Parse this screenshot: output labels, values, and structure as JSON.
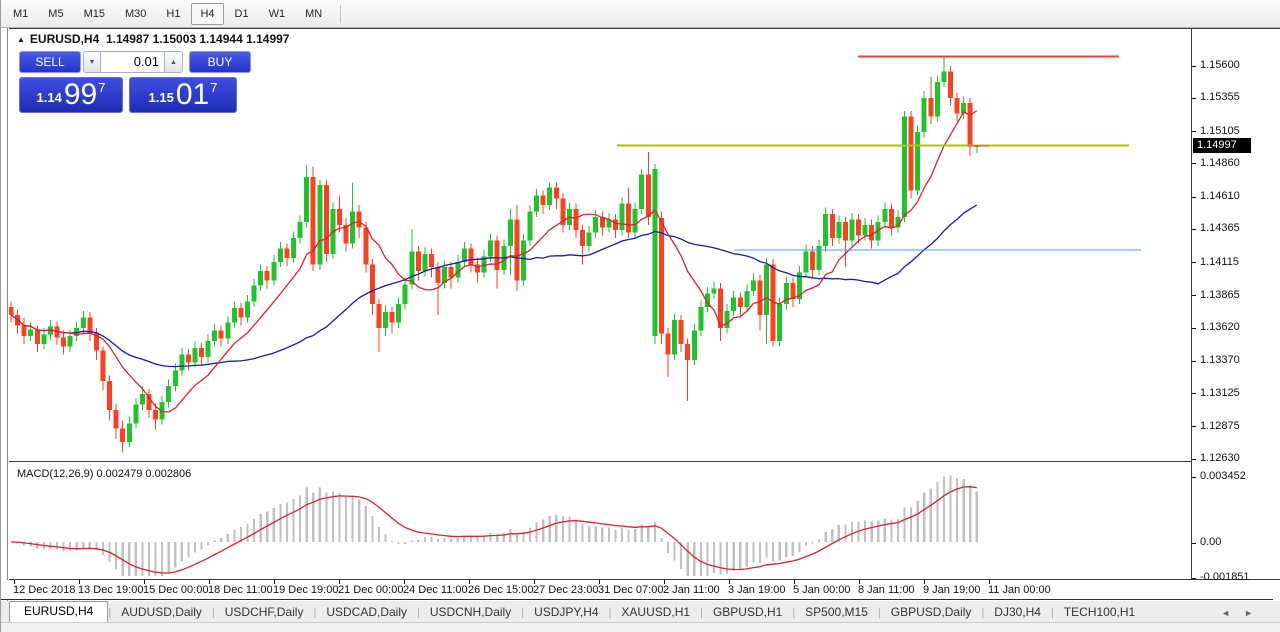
{
  "toolbar": {
    "timeframes": [
      "M1",
      "M5",
      "M15",
      "M30",
      "H1",
      "H4",
      "D1",
      "W1",
      "MN"
    ],
    "active": "H4"
  },
  "chart_header": {
    "collapse_icon": "▲",
    "symbol": "EURUSD,H4",
    "ohlc": "1.14987 1.15003 1.14944 1.14997"
  },
  "trade_panel": {
    "sell_label": "SELL",
    "buy_label": "BUY",
    "volume": "0.01",
    "spin_up_icon": "▲",
    "spin_down_icon": "▼",
    "sell_price": {
      "prefix": "1.14",
      "big": "99",
      "sup": "7"
    },
    "buy_price": {
      "prefix": "1.15",
      "big": "01",
      "sup": "7"
    }
  },
  "price_axis": {
    "current": "1.14997"
  },
  "macd_panel": {
    "label": "MACD(12,26,9) 0.002479 0.002806",
    "axis_max": "0.003452",
    "axis_zero": "0.00",
    "axis_min": "-0.001851"
  },
  "tabs": {
    "items": [
      "EURUSD,H4",
      "AUDUSD,Daily",
      "USDCHF,Daily",
      "USDCAD,Daily",
      "USDCNH,Daily",
      "USDJPY,H4",
      "XAUUSD,H1",
      "GBPUSD,H1",
      "SP500,M15",
      "GBPUSD,Daily",
      "DJ30,H4",
      "TECH100,H1"
    ],
    "active_index": 0,
    "scroll_left_icon": "◄",
    "scroll_right_icon": "►"
  },
  "colors": {
    "bull": "#1fc32c",
    "bear": "#ff3f22",
    "ma_fast": "#d9232e",
    "ma_slow": "#1b1ba8",
    "hline_red": "#fb3a3a",
    "hline_olive": "#aec400",
    "hline_blue": "#4a9ede",
    "macd_hist": "#c0c0c0",
    "macd_signal": "#d9232e"
  },
  "chart_data": {
    "type": "candlestick",
    "title": "EURUSD,H4",
    "ohlc_last": {
      "open": 1.14987,
      "high": 1.15003,
      "low": 1.14944,
      "close": 1.14997
    },
    "y_range": [
      1.1263,
      1.156
    ],
    "y_ticks": [
      1.156,
      1.15355,
      1.15105,
      1.1486,
      1.1461,
      1.14365,
      1.14115,
      1.13865,
      1.1362,
      1.1337,
      1.13125,
      1.12875,
      1.1263
    ],
    "x_tick_labels": [
      "12 Dec 2018",
      "13 Dec 19:00",
      "15 Dec 00:00",
      "18 Dec 11:00",
      "19 Dec 19:00",
      "21 Dec 00:00",
      "24 Dec 11:00",
      "26 Dec 15:00",
      "27 Dec 23:00",
      "31 Dec 07:00",
      "2 Jan 11:00",
      "3 Jan 19:00",
      "5 Jan 00:00",
      "8 Jan 11:00",
      "9 Jan 19:00",
      "11 Jan 00:00"
    ],
    "overlays": [
      {
        "name": "ma_fast",
        "period": 10
      },
      {
        "name": "ma_slow",
        "period": 34
      }
    ],
    "hlines": [
      {
        "price": 1.1567,
        "x_from": 857,
        "x_to": 1118,
        "color_key": "hline_red",
        "width": 2
      },
      {
        "price": 1.15,
        "x_from": 616,
        "x_to": 1128,
        "color_key": "hline_olive",
        "width": 2
      },
      {
        "price": 1.1421,
        "x_from": 733,
        "x_to": 1140,
        "color_key": "hline_blue",
        "width": 1
      },
      {
        "price": 1.14997,
        "x_from": 966,
        "x_to": 988,
        "color_key": "hline_red",
        "width": 1
      }
    ],
    "indicator": {
      "type": "macd",
      "params": [
        12,
        26,
        9
      ],
      "display_values": [
        0.002479,
        0.002806
      ],
      "y_max": 0.003452,
      "y_min": -0.001851
    },
    "candles": [
      [
        1.1378,
        1.1382,
        1.1366,
        1.1372
      ],
      [
        1.1372,
        1.1376,
        1.1358,
        1.1364
      ],
      [
        1.1364,
        1.137,
        1.135,
        1.1356
      ],
      [
        1.1356,
        1.1366,
        1.1352,
        1.1361
      ],
      [
        1.1361,
        1.1364,
        1.1344,
        1.135
      ],
      [
        1.135,
        1.1362,
        1.1346,
        1.1357
      ],
      [
        1.1357,
        1.1368,
        1.1353,
        1.1363
      ],
      [
        1.1363,
        1.1367,
        1.1349,
        1.1355
      ],
      [
        1.1355,
        1.136,
        1.1342,
        1.1348
      ],
      [
        1.1348,
        1.1361,
        1.1344,
        1.1356
      ],
      [
        1.1356,
        1.1367,
        1.1352,
        1.1362
      ],
      [
        1.1362,
        1.1375,
        1.1358,
        1.137
      ],
      [
        1.137,
        1.1374,
        1.1352,
        1.1358
      ],
      [
        1.1358,
        1.1362,
        1.1338,
        1.1345
      ],
      [
        1.1345,
        1.1348,
        1.1315,
        1.1322
      ],
      [
        1.1322,
        1.1326,
        1.1292,
        1.13
      ],
      [
        1.13,
        1.1305,
        1.1278,
        1.1286
      ],
      [
        1.1286,
        1.1292,
        1.1268,
        1.1276
      ],
      [
        1.1276,
        1.1295,
        1.1272,
        1.129
      ],
      [
        1.129,
        1.1309,
        1.1286,
        1.1304
      ],
      [
        1.1304,
        1.1318,
        1.13,
        1.1312
      ],
      [
        1.1312,
        1.1316,
        1.1294,
        1.13
      ],
      [
        1.13,
        1.1305,
        1.1285,
        1.1293
      ],
      [
        1.1293,
        1.1311,
        1.1289,
        1.1306
      ],
      [
        1.1306,
        1.1323,
        1.1302,
        1.1318
      ],
      [
        1.1318,
        1.1335,
        1.1314,
        1.133
      ],
      [
        1.133,
        1.1347,
        1.1326,
        1.1342
      ],
      [
        1.1342,
        1.1346,
        1.133,
        1.1336
      ],
      [
        1.1336,
        1.1352,
        1.1332,
        1.1347
      ],
      [
        1.1347,
        1.1351,
        1.1334,
        1.134
      ],
      [
        1.134,
        1.1357,
        1.1336,
        1.1352
      ],
      [
        1.1352,
        1.1365,
        1.1348,
        1.136
      ],
      [
        1.136,
        1.1364,
        1.1348,
        1.1354
      ],
      [
        1.1354,
        1.1371,
        1.135,
        1.1366
      ],
      [
        1.1366,
        1.1382,
        1.1362,
        1.1377
      ],
      [
        1.1377,
        1.1381,
        1.1364,
        1.137
      ],
      [
        1.137,
        1.1387,
        1.1366,
        1.1382
      ],
      [
        1.1382,
        1.1399,
        1.1378,
        1.1394
      ],
      [
        1.1394,
        1.141,
        1.139,
        1.1405
      ],
      [
        1.1405,
        1.1409,
        1.1392,
        1.1398
      ],
      [
        1.1398,
        1.1417,
        1.1394,
        1.1412
      ],
      [
        1.1412,
        1.1427,
        1.1408,
        1.1422
      ],
      [
        1.1422,
        1.1426,
        1.1409,
        1.1415
      ],
      [
        1.1415,
        1.1435,
        1.1411,
        1.143
      ],
      [
        1.143,
        1.1447,
        1.1426,
        1.1442
      ],
      [
        1.1442,
        1.1485,
        1.1438,
        1.1476
      ],
      [
        1.1476,
        1.1484,
        1.1405,
        1.141
      ],
      [
        1.141,
        1.1474,
        1.1406,
        1.147
      ],
      [
        1.147,
        1.1474,
        1.1412,
        1.1418
      ],
      [
        1.1418,
        1.1457,
        1.1414,
        1.1452
      ],
      [
        1.1452,
        1.1462,
        1.1434,
        1.144
      ],
      [
        1.144,
        1.1445,
        1.142,
        1.1426
      ],
      [
        1.1426,
        1.1472,
        1.1422,
        1.145
      ],
      [
        1.145,
        1.1455,
        1.143,
        1.1438
      ],
      [
        1.1438,
        1.1442,
        1.1404,
        1.141
      ],
      [
        1.141,
        1.1414,
        1.1372,
        1.138
      ],
      [
        1.138,
        1.1384,
        1.1344,
        1.1362
      ],
      [
        1.1362,
        1.1379,
        1.1356,
        1.1374
      ],
      [
        1.1374,
        1.1378,
        1.1358,
        1.1366
      ],
      [
        1.1366,
        1.1385,
        1.1362,
        1.138
      ],
      [
        1.138,
        1.14,
        1.1376,
        1.1395
      ],
      [
        1.1395,
        1.1437,
        1.1391,
        1.142
      ],
      [
        1.142,
        1.1424,
        1.1398,
        1.1405
      ],
      [
        1.1405,
        1.1423,
        1.1401,
        1.1418
      ],
      [
        1.1418,
        1.1422,
        1.14,
        1.1408
      ],
      [
        1.1408,
        1.1412,
        1.1372,
        1.1396
      ],
      [
        1.1396,
        1.1413,
        1.1392,
        1.1408
      ],
      [
        1.1408,
        1.1412,
        1.1392,
        1.14
      ],
      [
        1.14,
        1.1417,
        1.1396,
        1.1412
      ],
      [
        1.1412,
        1.1427,
        1.1408,
        1.1422
      ],
      [
        1.1422,
        1.1426,
        1.1404,
        1.141
      ],
      [
        1.141,
        1.1415,
        1.1396,
        1.1404
      ],
      [
        1.1404,
        1.1421,
        1.14,
        1.1416
      ],
      [
        1.1416,
        1.1433,
        1.1412,
        1.1428
      ],
      [
        1.1428,
        1.1432,
        1.1392,
        1.1406
      ],
      [
        1.1406,
        1.1429,
        1.1402,
        1.1424
      ],
      [
        1.1424,
        1.1452,
        1.1402,
        1.1444
      ],
      [
        1.1444,
        1.1455,
        1.139,
        1.1398
      ],
      [
        1.1398,
        1.1433,
        1.1394,
        1.1428
      ],
      [
        1.1428,
        1.1455,
        1.1424,
        1.145
      ],
      [
        1.145,
        1.1467,
        1.1446,
        1.1462
      ],
      [
        1.1462,
        1.1466,
        1.1448,
        1.1455
      ],
      [
        1.1455,
        1.1472,
        1.1451,
        1.1468
      ],
      [
        1.1468,
        1.1472,
        1.1452,
        1.146
      ],
      [
        1.146,
        1.1464,
        1.1434,
        1.144
      ],
      [
        1.144,
        1.1457,
        1.1436,
        1.1452
      ],
      [
        1.1452,
        1.1456,
        1.143,
        1.1436
      ],
      [
        1.1436,
        1.144,
        1.141,
        1.1424
      ],
      [
        1.1424,
        1.1439,
        1.142,
        1.1434
      ],
      [
        1.1434,
        1.1451,
        1.143,
        1.1446
      ],
      [
        1.1446,
        1.145,
        1.1432,
        1.1438
      ],
      [
        1.1438,
        1.1449,
        1.1434,
        1.1444
      ],
      [
        1.1444,
        1.1448,
        1.143,
        1.1436
      ],
      [
        1.1436,
        1.1461,
        1.1432,
        1.1456
      ],
      [
        1.1456,
        1.1468,
        1.143,
        1.1434
      ],
      [
        1.1434,
        1.1457,
        1.143,
        1.1452
      ],
      [
        1.1452,
        1.1482,
        1.1448,
        1.1478
      ],
      [
        1.1478,
        1.1495,
        1.144,
        1.1446
      ],
      [
        1.1356,
        1.1486,
        1.135,
        1.1482
      ],
      [
        1.1445,
        1.145,
        1.135,
        1.1358
      ],
      [
        1.1358,
        1.1362,
        1.1325,
        1.1342
      ],
      [
        1.1342,
        1.1373,
        1.1338,
        1.1368
      ],
      [
        1.1368,
        1.1372,
        1.1344,
        1.135
      ],
      [
        1.135,
        1.1354,
        1.1307,
        1.1338
      ],
      [
        1.1338,
        1.1365,
        1.1334,
        1.136
      ],
      [
        1.136,
        1.1383,
        1.1356,
        1.1378
      ],
      [
        1.1378,
        1.1393,
        1.1374,
        1.1388
      ],
      [
        1.1388,
        1.1397,
        1.1384,
        1.1392
      ],
      [
        1.1392,
        1.1396,
        1.1352,
        1.1362
      ],
      [
        1.1362,
        1.138,
        1.1358,
        1.1375
      ],
      [
        1.1375,
        1.139,
        1.1371,
        1.1385
      ],
      [
        1.1385,
        1.1389,
        1.137,
        1.1378
      ],
      [
        1.1378,
        1.1395,
        1.1374,
        1.139
      ],
      [
        1.139,
        1.1403,
        1.1386,
        1.1398
      ],
      [
        1.1398,
        1.1402,
        1.136,
        1.1372
      ],
      [
        1.1372,
        1.1415,
        1.135,
        1.141
      ],
      [
        1.141,
        1.1414,
        1.1348,
        1.1352
      ],
      [
        1.1352,
        1.1385,
        1.1348,
        1.138
      ],
      [
        1.138,
        1.1401,
        1.1376,
        1.1396
      ],
      [
        1.1396,
        1.14,
        1.1378,
        1.1384
      ],
      [
        1.1384,
        1.1409,
        1.138,
        1.1404
      ],
      [
        1.1404,
        1.1425,
        1.14,
        1.142
      ],
      [
        1.142,
        1.1424,
        1.14,
        1.1406
      ],
      [
        1.1406,
        1.1429,
        1.1402,
        1.1424
      ],
      [
        1.1424,
        1.1453,
        1.142,
        1.1448
      ],
      [
        1.1448,
        1.1452,
        1.1424,
        1.143
      ],
      [
        1.143,
        1.1447,
        1.1426,
        1.1442
      ],
      [
        1.1442,
        1.1446,
        1.1408,
        1.1428
      ],
      [
        1.1428,
        1.1449,
        1.1424,
        1.1444
      ],
      [
        1.1444,
        1.1448,
        1.1426,
        1.1432
      ],
      [
        1.1432,
        1.1445,
        1.1428,
        1.144
      ],
      [
        1.144,
        1.1444,
        1.1422,
        1.1428
      ],
      [
        1.1428,
        1.1447,
        1.1424,
        1.1442
      ],
      [
        1.1442,
        1.1457,
        1.1438,
        1.1452
      ],
      [
        1.1452,
        1.1456,
        1.1432,
        1.1438
      ],
      [
        1.1438,
        1.1451,
        1.1434,
        1.1446
      ],
      [
        1.1446,
        1.1526,
        1.1442,
        1.1522
      ],
      [
        1.1522,
        1.1526,
        1.146,
        1.1466
      ],
      [
        1.1466,
        1.1515,
        1.1462,
        1.151
      ],
      [
        1.151,
        1.1541,
        1.1506,
        1.1536
      ],
      [
        1.1536,
        1.1552,
        1.1516,
        1.1522
      ],
      [
        1.1522,
        1.1553,
        1.1518,
        1.1548
      ],
      [
        1.1548,
        1.1568,
        1.1544,
        1.1556
      ],
      [
        1.1556,
        1.156,
        1.153,
        1.1536
      ],
      [
        1.1536,
        1.154,
        1.1518,
        1.1524
      ],
      [
        1.1524,
        1.1537,
        1.152,
        1.1532
      ],
      [
        1.1532,
        1.1536,
        1.1492,
        1.1499
      ],
      [
        1.14987,
        1.15003,
        1.14944,
        1.14997
      ]
    ]
  }
}
